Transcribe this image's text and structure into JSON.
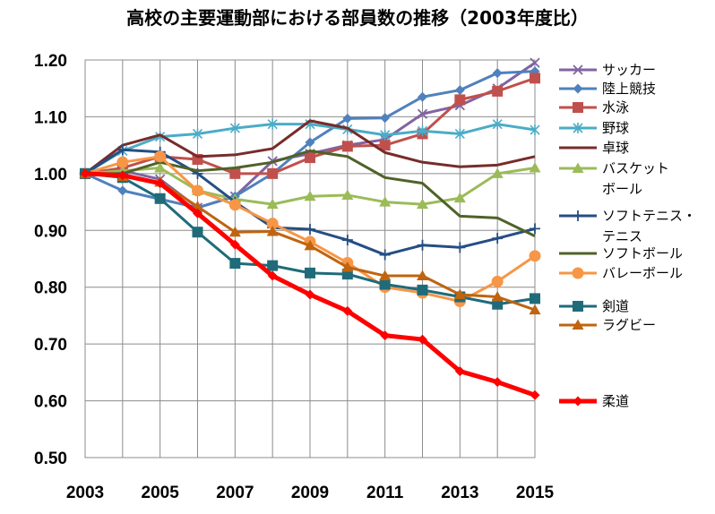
{
  "chart_data": {
    "type": "line",
    "title": "高校の主要運動部における部員数の推移（2003年度比）",
    "xlabel": "",
    "ylabel": "",
    "x": [
      2003,
      2004,
      2005,
      2006,
      2007,
      2008,
      2009,
      2010,
      2011,
      2012,
      2013,
      2014,
      2015
    ],
    "x_tick_labels": [
      "2003",
      "2005",
      "2007",
      "2009",
      "2011",
      "2013",
      "2015"
    ],
    "x_tick_values": [
      2003,
      2005,
      2007,
      2009,
      2011,
      2013,
      2015
    ],
    "y_tick_labels": [
      "0.50",
      "0.60",
      "0.70",
      "0.80",
      "0.90",
      "1.00",
      "1.10",
      "1.20"
    ],
    "y_tick_values": [
      0.5,
      0.6,
      0.7,
      0.8,
      0.9,
      1.0,
      1.1,
      1.2
    ],
    "ylim": [
      0.5,
      1.2
    ],
    "grid": true,
    "legend_position": "right",
    "series": [
      {
        "name": "サッカー",
        "marker": "x",
        "color": "#8064A2",
        "values": [
          1.0,
          1.005,
          0.99,
          0.94,
          0.96,
          1.022,
          1.035,
          1.05,
          1.06,
          1.105,
          1.12,
          1.15,
          1.195
        ]
      },
      {
        "name": "陸上競技",
        "marker": "diamond",
        "color": "#4F81BD",
        "values": [
          1.0,
          0.97,
          0.955,
          0.94,
          0.96,
          1.0,
          1.055,
          1.097,
          1.098,
          1.135,
          1.147,
          1.177,
          1.18
        ]
      },
      {
        "name": "水泳",
        "marker": "square",
        "color": "#C0504D",
        "values": [
          1.0,
          1.01,
          1.03,
          1.025,
          1.0,
          1.0,
          1.028,
          1.048,
          1.05,
          1.07,
          1.13,
          1.145,
          1.168
        ]
      },
      {
        "name": "野球",
        "marker": "star",
        "color": "#4BACC6",
        "values": [
          1.0,
          1.04,
          1.065,
          1.07,
          1.08,
          1.087,
          1.087,
          1.078,
          1.068,
          1.075,
          1.07,
          1.087,
          1.077
        ]
      },
      {
        "name": "卓球",
        "marker": "none",
        "color": "#772C2A",
        "values": [
          1.0,
          1.05,
          1.068,
          1.03,
          1.033,
          1.044,
          1.093,
          1.08,
          1.037,
          1.02,
          1.012,
          1.015,
          1.03
        ]
      },
      {
        "name": "バスケットボール",
        "label_lines": [
          "バスケット",
          "ボール"
        ],
        "marker": "triangle",
        "color": "#9BBB59",
        "values": [
          1.0,
          1.005,
          1.01,
          0.97,
          0.955,
          0.946,
          0.96,
          0.962,
          0.95,
          0.946,
          0.957,
          1.0,
          1.01
        ]
      },
      {
        "name": "ソフトテニス・テニス",
        "label_lines": [
          "ソフトテニス・",
          "テニス"
        ],
        "marker": "plus",
        "color": "#254E83",
        "values": [
          1.0,
          1.042,
          1.038,
          1.0,
          0.95,
          0.905,
          0.902,
          0.883,
          0.857,
          0.874,
          0.87,
          0.886,
          0.903
        ]
      },
      {
        "name": "ソフトボール",
        "marker": "none",
        "color": "#4F6228",
        "values": [
          1.0,
          1.0,
          1.02,
          1.005,
          1.01,
          1.02,
          1.04,
          1.03,
          0.993,
          0.983,
          0.925,
          0.922,
          0.89
        ]
      },
      {
        "name": "バレーボール",
        "marker": "circle",
        "color": "#F79646",
        "values": [
          1.0,
          1.02,
          1.03,
          0.97,
          0.945,
          0.912,
          0.88,
          0.843,
          0.8,
          0.79,
          0.775,
          0.81,
          0.855
        ]
      },
      {
        "name": "剣道",
        "marker": "square",
        "color": "#1F6B7A",
        "values": [
          1.0,
          0.993,
          0.956,
          0.897,
          0.842,
          0.838,
          0.825,
          0.823,
          0.805,
          0.795,
          0.783,
          0.77,
          0.78
        ]
      },
      {
        "name": "ラグビー",
        "marker": "triangle",
        "color": "#C0640F",
        "values": [
          1.0,
          0.995,
          0.985,
          0.942,
          0.897,
          0.898,
          0.873,
          0.835,
          0.82,
          0.82,
          0.787,
          0.783,
          0.76
        ]
      },
      {
        "name": "柔道",
        "marker": "diamond",
        "color": "#FF0000",
        "thick": true,
        "values": [
          1.0,
          0.997,
          0.983,
          0.93,
          0.875,
          0.82,
          0.787,
          0.758,
          0.715,
          0.708,
          0.652,
          0.633,
          0.61
        ]
      }
    ]
  }
}
